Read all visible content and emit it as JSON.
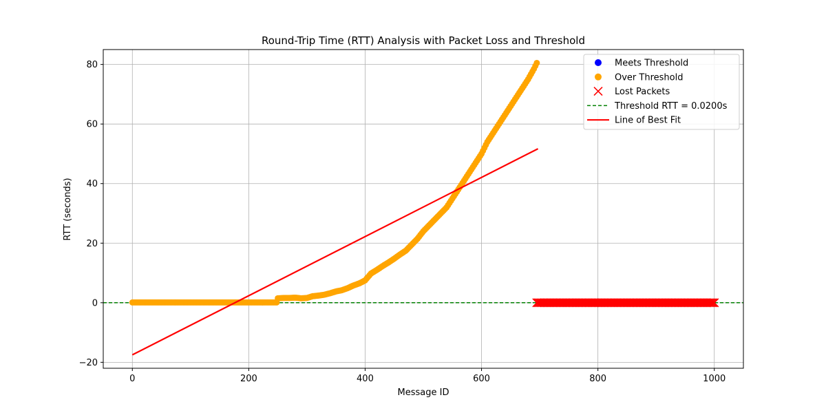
{
  "chart_data": {
    "type": "scatter",
    "title": "Round-Trip Time (RTT) Analysis with Packet Loss and Threshold",
    "xlabel": "Message ID",
    "ylabel": "RTT (seconds)",
    "xlim": [
      -50,
      1050
    ],
    "ylim": [
      -22,
      85
    ],
    "xticks": [
      0,
      200,
      400,
      600,
      800,
      1000
    ],
    "yticks": [
      -20,
      0,
      20,
      40,
      60,
      80
    ],
    "xtick_labels": [
      "0",
      "200",
      "400",
      "600",
      "800",
      "1000"
    ],
    "ytick_labels": [
      "−20",
      "0",
      "20",
      "40",
      "60",
      "80"
    ],
    "grid": true,
    "legend_position": "top-right",
    "series": [
      {
        "name": "Meets Threshold",
        "kind": "scatter",
        "marker": "circle",
        "color": "#0000ff",
        "points": []
      },
      {
        "name": "Over Threshold",
        "kind": "scatter",
        "marker": "circle",
        "color": "#ffa500",
        "points": [
          [
            0,
            0.1
          ],
          [
            10,
            0.1
          ],
          [
            20,
            0.1
          ],
          [
            30,
            0.1
          ],
          [
            40,
            0.1
          ],
          [
            50,
            0.1
          ],
          [
            60,
            0.1
          ],
          [
            70,
            0.1
          ],
          [
            80,
            0.1
          ],
          [
            90,
            0.1
          ],
          [
            100,
            0.1
          ],
          [
            110,
            0.1
          ],
          [
            120,
            0.1
          ],
          [
            130,
            0.1
          ],
          [
            140,
            0.1
          ],
          [
            150,
            0.1
          ],
          [
            160,
            0.1
          ],
          [
            170,
            0.1
          ],
          [
            180,
            0.1
          ],
          [
            190,
            0.1
          ],
          [
            200,
            0.1
          ],
          [
            210,
            0.1
          ],
          [
            220,
            0.1
          ],
          [
            230,
            0.1
          ],
          [
            240,
            0.1
          ],
          [
            248,
            0.1
          ],
          [
            250,
            1.5
          ],
          [
            260,
            1.6
          ],
          [
            270,
            1.6
          ],
          [
            280,
            1.7
          ],
          [
            290,
            1.5
          ],
          [
            300,
            1.6
          ],
          [
            310,
            2.2
          ],
          [
            320,
            2.4
          ],
          [
            330,
            2.7
          ],
          [
            340,
            3.2
          ],
          [
            350,
            3.8
          ],
          [
            360,
            4.2
          ],
          [
            370,
            4.9
          ],
          [
            380,
            5.8
          ],
          [
            390,
            6.5
          ],
          [
            400,
            7.5
          ],
          [
            410,
            9.8
          ],
          [
            420,
            11.0
          ],
          [
            430,
            12.3
          ],
          [
            440,
            13.5
          ],
          [
            450,
            14.8
          ],
          [
            460,
            16.2
          ],
          [
            470,
            17.5
          ],
          [
            480,
            19.5
          ],
          [
            490,
            21.5
          ],
          [
            500,
            24.0
          ],
          [
            510,
            26.0
          ],
          [
            520,
            28.0
          ],
          [
            530,
            30.0
          ],
          [
            540,
            32.0
          ],
          [
            550,
            35.0
          ],
          [
            560,
            38.0
          ],
          [
            570,
            41.0
          ],
          [
            580,
            44.0
          ],
          [
            590,
            47.0
          ],
          [
            600,
            50.0
          ],
          [
            610,
            54.0
          ],
          [
            620,
            57.0
          ],
          [
            630,
            60.0
          ],
          [
            640,
            63.0
          ],
          [
            650,
            66.0
          ],
          [
            660,
            69.0
          ],
          [
            670,
            72.0
          ],
          [
            680,
            75.0
          ],
          [
            690,
            78.5
          ],
          [
            695,
            80.5
          ]
        ]
      },
      {
        "name": "Lost Packets",
        "kind": "scatter",
        "marker": "x",
        "color": "#ff0000",
        "points": [
          [
            695,
            0
          ],
          [
            700,
            0
          ],
          [
            710,
            0
          ],
          [
            720,
            0
          ],
          [
            730,
            0
          ],
          [
            740,
            0
          ],
          [
            750,
            0
          ],
          [
            760,
            0
          ],
          [
            770,
            0
          ],
          [
            780,
            0
          ],
          [
            790,
            0
          ],
          [
            800,
            0
          ],
          [
            810,
            0
          ],
          [
            820,
            0
          ],
          [
            830,
            0
          ],
          [
            840,
            0
          ],
          [
            850,
            0
          ],
          [
            860,
            0
          ],
          [
            870,
            0
          ],
          [
            880,
            0
          ],
          [
            890,
            0
          ],
          [
            900,
            0
          ],
          [
            910,
            0
          ],
          [
            920,
            0
          ],
          [
            930,
            0
          ],
          [
            940,
            0
          ],
          [
            950,
            0
          ],
          [
            960,
            0
          ],
          [
            970,
            0
          ],
          [
            980,
            0
          ],
          [
            990,
            0
          ],
          [
            1000,
            0
          ]
        ]
      },
      {
        "name": "Threshold RTT = 0.0200s",
        "kind": "hline",
        "style": "dashed",
        "color": "#008000",
        "y": 0.02
      },
      {
        "name": "Line of Best Fit",
        "kind": "line",
        "color": "#ff0000",
        "points": [
          [
            0,
            -17.5
          ],
          [
            697,
            51.7
          ]
        ]
      }
    ]
  }
}
